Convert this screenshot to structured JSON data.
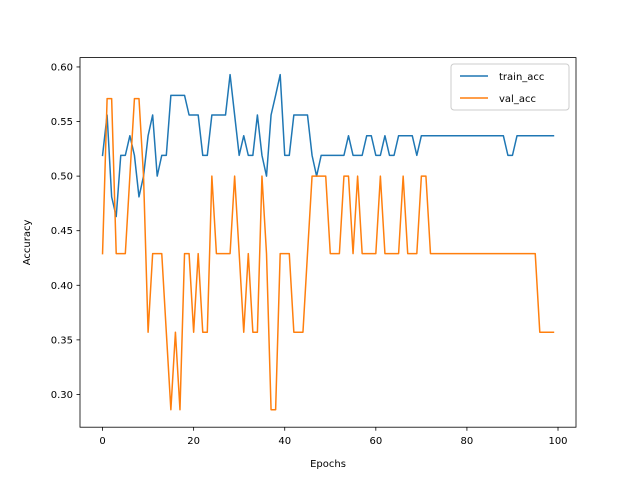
{
  "chart_data": {
    "type": "line",
    "title": "",
    "xlabel": "Epochs",
    "ylabel": "Accuracy",
    "xlim": [
      -4.95,
      103.95
    ],
    "ylim": [
      0.27,
      0.60857
    ],
    "xticks": [
      0,
      20,
      40,
      60,
      80,
      100
    ],
    "xtick_labels": [
      "0",
      "20",
      "40",
      "60",
      "80",
      "100"
    ],
    "yticks": [
      0.3,
      0.35,
      0.4,
      0.45,
      0.5,
      0.55,
      0.6
    ],
    "ytick_labels": [
      "0.30",
      "0.35",
      "0.40",
      "0.45",
      "0.50",
      "0.55",
      "0.60"
    ],
    "grid": false,
    "legend_position": "top-right",
    "x": [
      0,
      1,
      2,
      3,
      4,
      5,
      6,
      7,
      8,
      9,
      10,
      11,
      12,
      13,
      14,
      15,
      16,
      17,
      18,
      19,
      20,
      21,
      22,
      23,
      24,
      25,
      26,
      27,
      28,
      29,
      30,
      31,
      32,
      33,
      34,
      35,
      36,
      37,
      38,
      39,
      40,
      41,
      42,
      43,
      44,
      45,
      46,
      47,
      48,
      49,
      50,
      51,
      52,
      53,
      54,
      55,
      56,
      57,
      58,
      59,
      60,
      61,
      62,
      63,
      64,
      65,
      66,
      67,
      68,
      69,
      70,
      71,
      72,
      73,
      74,
      75,
      76,
      77,
      78,
      79,
      80,
      81,
      82,
      83,
      84,
      85,
      86,
      87,
      88,
      89,
      90,
      91,
      92,
      93,
      94,
      95,
      96,
      97,
      98,
      99
    ],
    "series": [
      {
        "name": "train_acc",
        "color": "#1f77b4",
        "values": [
          0.519,
          0.556,
          0.481,
          0.463,
          0.519,
          0.519,
          0.537,
          0.519,
          0.481,
          0.5,
          0.537,
          0.556,
          0.5,
          0.519,
          0.519,
          0.574,
          0.574,
          0.574,
          0.574,
          0.556,
          0.556,
          0.556,
          0.519,
          0.519,
          0.556,
          0.556,
          0.556,
          0.556,
          0.593,
          0.556,
          0.519,
          0.537,
          0.519,
          0.519,
          0.556,
          0.519,
          0.5,
          0.556,
          0.574,
          0.593,
          0.519,
          0.519,
          0.556,
          0.556,
          0.556,
          0.556,
          0.519,
          0.5,
          0.519,
          0.519,
          0.519,
          0.519,
          0.519,
          0.519,
          0.537,
          0.519,
          0.519,
          0.519,
          0.537,
          0.537,
          0.519,
          0.519,
          0.537,
          0.519,
          0.519,
          0.537,
          0.537,
          0.537,
          0.537,
          0.519,
          0.537,
          0.537,
          0.537,
          0.537,
          0.537,
          0.537,
          0.537,
          0.537,
          0.537,
          0.537,
          0.537,
          0.537,
          0.537,
          0.537,
          0.537,
          0.537,
          0.537,
          0.537,
          0.537,
          0.519,
          0.519,
          0.537,
          0.537,
          0.537,
          0.537,
          0.537,
          0.537,
          0.537,
          0.537,
          0.537
        ]
      },
      {
        "name": "val_acc",
        "color": "#ff7f0e",
        "values": [
          0.429,
          0.571,
          0.571,
          0.429,
          0.429,
          0.429,
          0.5,
          0.571,
          0.571,
          0.5,
          0.357,
          0.429,
          0.429,
          0.429,
          0.357,
          0.286,
          0.357,
          0.286,
          0.429,
          0.429,
          0.357,
          0.429,
          0.357,
          0.357,
          0.5,
          0.429,
          0.429,
          0.429,
          0.429,
          0.5,
          0.429,
          0.357,
          0.429,
          0.357,
          0.357,
          0.5,
          0.429,
          0.286,
          0.286,
          0.429,
          0.429,
          0.429,
          0.357,
          0.357,
          0.357,
          0.429,
          0.5,
          0.5,
          0.5,
          0.5,
          0.429,
          0.429,
          0.429,
          0.5,
          0.5,
          0.429,
          0.5,
          0.429,
          0.429,
          0.429,
          0.429,
          0.5,
          0.429,
          0.429,
          0.429,
          0.429,
          0.5,
          0.429,
          0.429,
          0.429,
          0.5,
          0.5,
          0.429,
          0.429,
          0.429,
          0.429,
          0.429,
          0.429,
          0.429,
          0.429,
          0.429,
          0.429,
          0.429,
          0.429,
          0.429,
          0.429,
          0.429,
          0.429,
          0.429,
          0.429,
          0.429,
          0.429,
          0.429,
          0.429,
          0.429,
          0.429,
          0.357,
          0.357,
          0.357,
          0.357
        ]
      }
    ]
  }
}
